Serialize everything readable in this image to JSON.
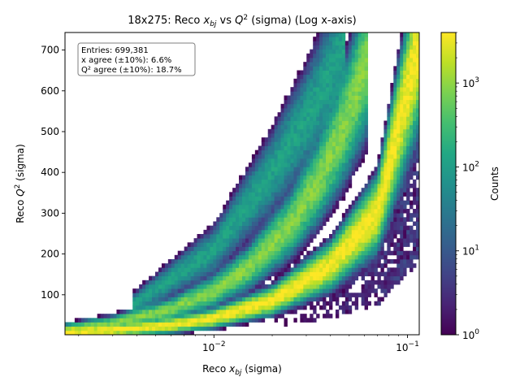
{
  "chart_data": {
    "type": "heatmap",
    "title": "18x275: Reco x_bj vs Q² (sigma) (Log x-axis)",
    "title_parts": {
      "pre": "18x275: Reco ",
      "x_var": "x",
      "x_sub": "bj",
      "mid": " vs ",
      "q_var": "Q",
      "q_sup": "2",
      "post": " (sigma) (Log x-axis)"
    },
    "xlabel": "Reco x_bj (sigma)",
    "xlabel_parts": {
      "pre": "Reco ",
      "var": "x",
      "sub": "bj",
      "post": " (sigma)"
    },
    "ylabel": "Reco Q² (sigma)",
    "ylabel_parts": {
      "pre": "Reco ",
      "var": "Q",
      "sup": "2",
      "post": " (sigma)"
    },
    "x_scale": "log",
    "xlim": [
      0.0017,
      0.115
    ],
    "ylim": [
      2,
      743
    ],
    "x_ticks": [
      {
        "value": 0.01,
        "base": "10",
        "exp": "−2"
      },
      {
        "value": 0.1,
        "base": "10",
        "exp": "−1"
      }
    ],
    "y_ticks": [
      100,
      200,
      300,
      400,
      500,
      600,
      700
    ],
    "colorbar": {
      "label": "Counts",
      "scale": "log",
      "range": [
        1,
        4000
      ],
      "colormap": "viridis",
      "ticks": [
        {
          "value": 1,
          "base": "10",
          "exp": "0"
        },
        {
          "value": 10,
          "base": "10",
          "exp": "1"
        },
        {
          "value": 100,
          "base": "10",
          "exp": "2"
        },
        {
          "value": 1000,
          "base": "10",
          "exp": "3"
        }
      ]
    },
    "stats_box": {
      "placement": "top-left",
      "lines": [
        "Entries: 699,381",
        "x agree (±10%): 6.6%",
        "Q² agree (±10%): 18.7%"
      ]
    },
    "bands": [
      {
        "name": "",
        "x": [
          0.0017,
          0.003,
          0.006,
          0.01,
          0.02,
          0.04,
          0.07,
          0.115
        ],
        "q2": [
          8,
          13,
          26,
          43,
          86,
          172,
          301,
          720
        ],
        "peak_counts": 4000
      },
      {
        "name": "",
        "x": [
          0.0017,
          0.003,
          0.006,
          0.01,
          0.015,
          0.025,
          0.035,
          0.045,
          0.055,
          0.063
        ],
        "q2": [
          14,
          30,
          65,
          110,
          165,
          274,
          384,
          494,
          604,
          690
        ],
        "peak_counts": 900
      },
      {
        "name": "",
        "x": [
          0.0038,
          0.01,
          0.02,
          0.03,
          0.04,
          0.048
        ],
        "q2": [
          75,
          210,
          400,
          530,
          640,
          730
        ],
        "peak_counts": 120
      }
    ],
    "grid": false
  }
}
